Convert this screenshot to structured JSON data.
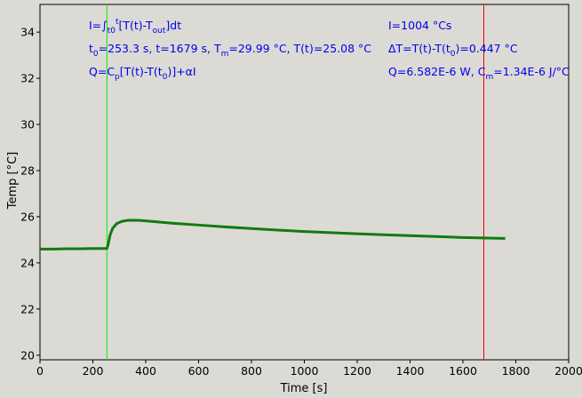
{
  "chart_data": {
    "type": "line",
    "xlabel": "Time [s]",
    "ylabel": "Temp [°C]",
    "xlim": [
      0,
      2000
    ],
    "ylim": [
      19.8,
      35.2
    ],
    "xticks": [
      "0",
      "200",
      "400",
      "600",
      "800",
      "1000",
      "1200",
      "1400",
      "1600",
      "1800",
      "2000"
    ],
    "yticks": [
      "20",
      "22",
      "24",
      "26",
      "28",
      "30",
      "32",
      "34"
    ],
    "grid": false,
    "line_color": "#117a11",
    "background": "#dcdad5",
    "series": [
      {
        "x": [
          0,
          50,
          100,
          150,
          200,
          250,
          253,
          258,
          265,
          275,
          290,
          310,
          330,
          350,
          380,
          420,
          500,
          600,
          700,
          800,
          900,
          1000,
          1100,
          1200,
          1300,
          1400,
          1500,
          1600,
          1679,
          1760
        ],
        "y": [
          24.6,
          24.6,
          24.61,
          24.61,
          24.62,
          24.62,
          24.62,
          24.8,
          25.2,
          25.5,
          25.7,
          25.8,
          25.84,
          25.85,
          25.84,
          25.8,
          25.72,
          25.64,
          25.56,
          25.49,
          25.42,
          25.36,
          25.31,
          25.26,
          25.22,
          25.18,
          25.14,
          25.1,
          25.08,
          25.06
        ]
      }
    ],
    "markers": [
      {
        "x": 253.3,
        "color": "#00ee00"
      },
      {
        "x": 1679,
        "color": "#ee0000"
      }
    ]
  },
  "annotations": {
    "left": {
      "integral": {
        "a": "I=∫",
        "b": "t0",
        "c": "t",
        "d": "[T(t)-T",
        "e": "out",
        "f": "]dt"
      },
      "params": {
        "t0_a": "t",
        "t0_b": "0",
        "t0_c": "=253.3 s,   t=1679 s,   T",
        "tm_b": "m",
        "tm_c": "=29.99 °C,  T(t)=25.08 °C"
      },
      "heat": {
        "a": "Q=C",
        "b": "p",
        "c": "[T(t)-T(t",
        "d": "0",
        "e": ")]+αI"
      }
    },
    "right": {
      "integral_value": "I=1004 °Cs",
      "delta": {
        "a": "ΔT=T(t)-T(t",
        "b": "0",
        "c": ")=0.447 °C"
      },
      "power": {
        "a": "Q=6.582E-6 W,   C",
        "b": "m",
        "c": "=1.34E-6 J/°C"
      }
    }
  }
}
